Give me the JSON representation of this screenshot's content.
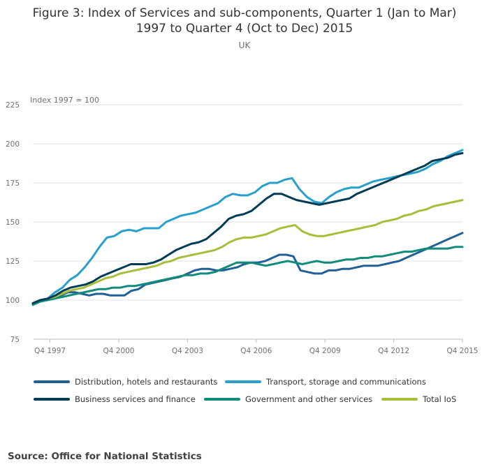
{
  "chart_data": {
    "type": "line",
    "title_line1": "Figure 3: Index of Services and sub-components, Quarter 1 (Jan to Mar)",
    "title_line2": "1997 to Quarter 4 (Oct to Dec) 2015",
    "subtitle": "UK",
    "ylabel": "Index 1997 = 100",
    "ylim": [
      75,
      225
    ],
    "yticks": [
      75,
      100,
      125,
      150,
      175,
      200,
      225
    ],
    "xticks": [
      "Q4 1997",
      "Q4 2000",
      "Q4 2003",
      "Q4 2006",
      "Q4 2009",
      "Q4 2012",
      "Q4 2015"
    ],
    "source": "Source: Office for National Statistics",
    "x_start": "Q1 1997",
    "x_end": "Q4 2015",
    "series": [
      {
        "name": "Distribution, hotels and restaurants",
        "color": "#206095",
        "values": [
          98,
          100,
          100,
          101,
          103,
          105,
          105,
          104,
          103,
          104,
          104,
          103,
          103,
          103,
          106,
          107,
          110,
          111,
          112,
          113,
          114,
          115,
          117,
          119,
          120,
          120,
          119,
          119,
          120,
          121,
          123,
          124,
          124,
          125,
          127,
          129,
          129,
          128,
          119,
          118,
          117,
          117,
          119,
          119,
          120,
          120,
          121,
          122,
          122,
          122,
          123,
          124,
          125,
          127,
          129,
          131,
          133,
          135,
          137,
          139,
          141,
          143
        ]
      },
      {
        "name": "Transport, storage and communications",
        "color": "#27A0CC",
        "values": [
          98,
          100,
          101,
          105,
          108,
          113,
          116,
          121,
          127,
          134,
          140,
          141,
          144,
          145,
          144,
          146,
          146,
          146,
          150,
          152,
          154,
          155,
          156,
          158,
          160,
          162,
          166,
          168,
          167,
          167,
          169,
          173,
          175,
          175,
          177,
          178,
          171,
          166,
          163,
          162,
          166,
          169,
          171,
          172,
          172,
          174,
          176,
          177,
          178,
          179,
          180,
          181,
          182,
          184,
          187,
          189,
          192,
          194,
          196
        ]
      },
      {
        "name": "Business services and finance",
        "color": "#003C57",
        "values": [
          98,
          100,
          101,
          103,
          106,
          108,
          109,
          110,
          112,
          115,
          117,
          119,
          121,
          123,
          123,
          123,
          124,
          126,
          129,
          132,
          134,
          136,
          137,
          139,
          143,
          147,
          152,
          154,
          155,
          157,
          161,
          165,
          168,
          168,
          166,
          164,
          163,
          162,
          161,
          162,
          163,
          164,
          165,
          168,
          170,
          172,
          174,
          176,
          178,
          180,
          182,
          184,
          186,
          189,
          190,
          191,
          193,
          194
        ]
      },
      {
        "name": "Government and other services",
        "color": "#118C7B",
        "values": [
          97,
          99,
          100,
          101,
          102,
          103,
          104,
          105,
          106,
          107,
          107,
          108,
          108,
          109,
          109,
          110,
          111,
          112,
          113,
          114,
          115,
          116,
          116,
          117,
          117,
          118,
          120,
          122,
          124,
          124,
          124,
          123,
          122,
          123,
          124,
          125,
          124,
          123,
          124,
          125,
          124,
          124,
          125,
          126,
          126,
          127,
          127,
          128,
          128,
          129,
          130,
          131,
          131,
          132,
          133,
          133,
          133,
          133,
          134,
          134
        ]
      },
      {
        "name": "Total IoS",
        "color": "#A8BD3A",
        "values": [
          98,
          100,
          101,
          102,
          104,
          106,
          107,
          108,
          110,
          112,
          114,
          115,
          117,
          118,
          119,
          120,
          121,
          122,
          124,
          125,
          127,
          128,
          129,
          130,
          131,
          132,
          134,
          137,
          139,
          140,
          140,
          141,
          142,
          144,
          146,
          147,
          148,
          144,
          142,
          141,
          141,
          142,
          143,
          144,
          145,
          146,
          147,
          148,
          150,
          151,
          152,
          154,
          155,
          157,
          158,
          160,
          161,
          162,
          163,
          164
        ]
      }
    ]
  }
}
